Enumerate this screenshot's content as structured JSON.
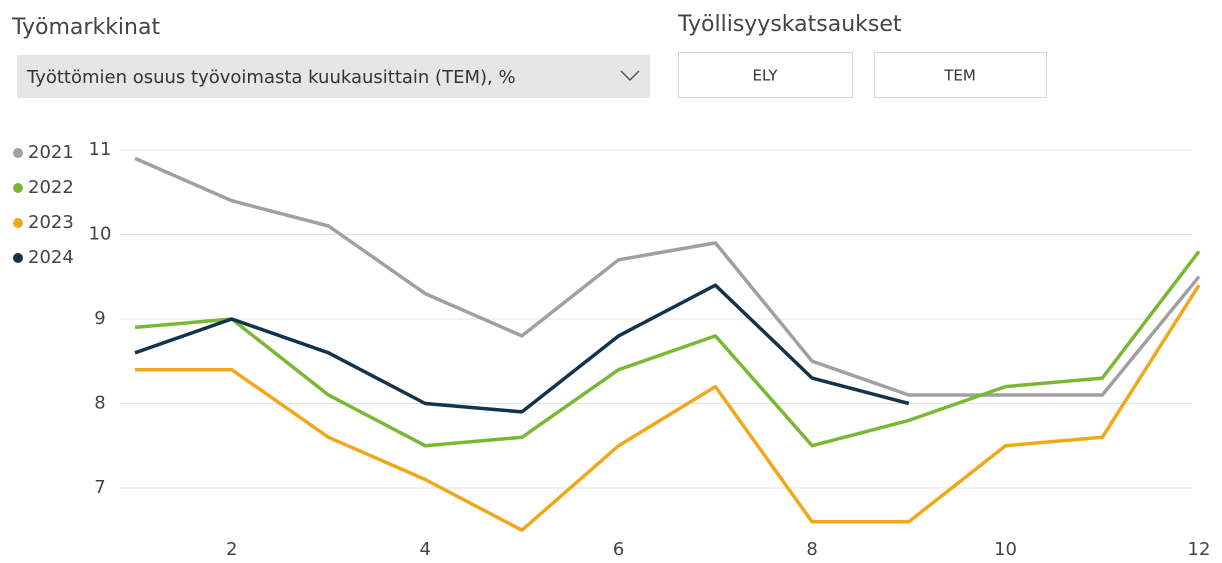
{
  "header": {
    "title": "Työmarkkinat",
    "dropdown": "Työttömien osuus työvoimasta kuukausittain (TEM), %"
  },
  "reports": {
    "title": "Työllisyyskatsaukset",
    "buttons": [
      "ELY",
      "TEM"
    ]
  },
  "chart_data": {
    "type": "line",
    "x": [
      1,
      2,
      3,
      4,
      5,
      6,
      7,
      8,
      9,
      10,
      11,
      12
    ],
    "series": [
      {
        "name": "2021",
        "color": "#a0a0a0",
        "values": [
          10.9,
          10.4,
          10.1,
          9.3,
          8.8,
          9.7,
          9.9,
          8.5,
          8.1,
          8.1,
          8.1,
          9.5
        ]
      },
      {
        "name": "2022",
        "color": "#7ab833",
        "values": [
          8.9,
          9.0,
          8.1,
          7.5,
          7.6,
          8.4,
          8.8,
          7.5,
          7.8,
          8.2,
          8.3,
          9.8
        ]
      },
      {
        "name": "2023",
        "color": "#f0a818",
        "values": [
          8.4,
          8.4,
          7.6,
          7.1,
          6.5,
          7.5,
          8.2,
          6.6,
          6.6,
          7.5,
          7.6,
          9.4
        ]
      },
      {
        "name": "2024",
        "color": "#13334c",
        "values": [
          8.6,
          9.0,
          8.6,
          8.0,
          7.9,
          8.8,
          9.4,
          8.3,
          8.0,
          null,
          null,
          null
        ]
      }
    ],
    "xlim": [
      1,
      12
    ],
    "xticks": [
      2,
      4,
      6,
      8,
      10,
      12
    ],
    "ylim": [
      6.4,
      11.1
    ],
    "yticks": [
      7,
      8,
      9,
      10,
      11
    ],
    "grid": true,
    "legend": "left"
  }
}
